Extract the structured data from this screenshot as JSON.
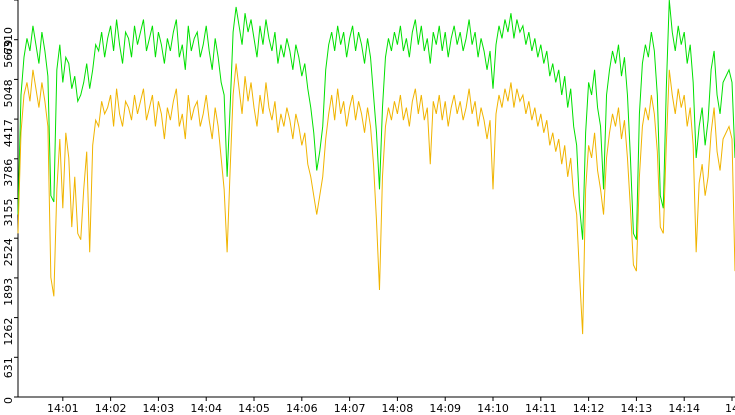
{
  "chart_data": {
    "type": "line",
    "categories": [
      null,
      null,
      null,
      null,
      null,
      null,
      null,
      null,
      null,
      null,
      null,
      null,
      null,
      null,
      null,
      "14:01",
      null,
      null,
      null,
      null,
      null,
      null,
      null,
      null,
      null,
      null,
      null,
      null,
      null,
      null,
      null,
      "14:02",
      null,
      null,
      null,
      null,
      null,
      null,
      null,
      null,
      null,
      null,
      null,
      null,
      null,
      null,
      null,
      "14:03",
      null,
      null,
      null,
      null,
      null,
      null,
      null,
      null,
      null,
      null,
      null,
      null,
      null,
      null,
      null,
      "14:04",
      null,
      null,
      null,
      null,
      null,
      null,
      null,
      null,
      null,
      null,
      null,
      null,
      null,
      null,
      null,
      "14:05",
      null,
      null,
      null,
      null,
      null,
      null,
      null,
      null,
      null,
      null,
      null,
      null,
      null,
      null,
      null,
      "14:06",
      null,
      null,
      null,
      null,
      null,
      null,
      null,
      null,
      null,
      null,
      null,
      null,
      null,
      null,
      null,
      "14:07",
      null,
      null,
      null,
      null,
      null,
      null,
      null,
      null,
      null,
      null,
      null,
      null,
      null,
      null,
      null,
      "14:08",
      null,
      null,
      null,
      null,
      null,
      null,
      null,
      null,
      null,
      null,
      null,
      null,
      null,
      null,
      null,
      "14:09",
      null,
      null,
      null,
      null,
      null,
      null,
      null,
      null,
      null,
      null,
      null,
      null,
      null,
      null,
      null,
      "14:10",
      null,
      null,
      null,
      null,
      null,
      null,
      null,
      null,
      null,
      null,
      null,
      null,
      null,
      null,
      null,
      "14:11",
      null,
      null,
      null,
      null,
      null,
      null,
      null,
      null,
      null,
      null,
      null,
      null,
      null,
      null,
      null,
      "14:12",
      null,
      null,
      null,
      null,
      null,
      null,
      null,
      null,
      null,
      null,
      null,
      null,
      null,
      null,
      null,
      "14:13",
      null,
      null,
      null,
      null,
      null,
      null,
      null,
      null,
      null,
      null,
      null,
      null,
      null,
      null,
      null,
      "14:14",
      null,
      null,
      null,
      null,
      null,
      null,
      null,
      null,
      null,
      null,
      null,
      null,
      null,
      null,
      null,
      "14",
      null
    ],
    "series": [
      {
        "color": "#00e000",
        "values": [
          2900,
          4800,
          5400,
          5700,
          5500,
          5900,
          5600,
          5300,
          5800,
          5500,
          5100,
          3200,
          3100,
          5200,
          5600,
          5000,
          5400,
          5300,
          4900,
          5100,
          4700,
          4800,
          5000,
          5300,
          4900,
          5200,
          5600,
          5500,
          5800,
          5400,
          5700,
          5900,
          5500,
          6000,
          5600,
          5300,
          5800,
          5700,
          5400,
          5900,
          5600,
          5800,
          6000,
          5500,
          5700,
          5900,
          5400,
          5800,
          5600,
          5300,
          5700,
          5500,
          5800,
          6000,
          5400,
          5600,
          5200,
          5900,
          5500,
          5700,
          5800,
          5400,
          5600,
          5900,
          5500,
          5200,
          5700,
          5400,
          5000,
          4800,
          3500,
          4600,
          5800,
          6200,
          5900,
          5600,
          6100,
          5800,
          6000,
          5700,
          5400,
          5900,
          5600,
          6000,
          5700,
          5500,
          5800,
          5300,
          5600,
          5400,
          5700,
          5500,
          5200,
          5600,
          5400,
          5100,
          5300,
          4900,
          4600,
          4200,
          3600,
          3900,
          4300,
          5200,
          5600,
          5800,
          5500,
          5900,
          5600,
          5800,
          5400,
          5700,
          5900,
          5500,
          5800,
          5600,
          5300,
          5700,
          5400,
          4800,
          4200,
          3300,
          4600,
          5400,
          5700,
          5500,
          5800,
          5600,
          5900,
          5500,
          5700,
          5400,
          5800,
          6000,
          5600,
          5900,
          5500,
          5700,
          5300,
          5800,
          5600,
          5900,
          5500,
          5800,
          5400,
          5700,
          5900,
          5600,
          5800,
          5500,
          5700,
          6000,
          5600,
          5800,
          5400,
          5700,
          5500,
          5200,
          5500,
          4900,
          5600,
          5900,
          5700,
          6000,
          5800,
          6100,
          5700,
          6000,
          5800,
          5900,
          5600,
          5800,
          5500,
          5700,
          5400,
          5600,
          5300,
          5500,
          5100,
          5300,
          5000,
          5200,
          4800,
          5100,
          4600,
          4900,
          4300,
          4000,
          3000,
          2500,
          4200,
          5000,
          4800,
          5200,
          4600,
          4300,
          3300,
          4800,
          5200,
          5500,
          5300,
          5600,
          5100,
          5400,
          4800,
          3800,
          2600,
          2500,
          4500,
          5300,
          5600,
          5400,
          5800,
          5500,
          4800,
          3200,
          3000,
          4900,
          6310,
          5800,
          5500,
          5900,
          5600,
          5800,
          5300,
          5600,
          5000,
          3800,
          4300,
          4600,
          4000,
          4400,
          5200,
          5500,
          4800,
          4500,
          5000,
          5100,
          5200,
          5000,
          3800
        ]
      },
      {
        "color": "#f0b400",
        "values": [
          2600,
          4200,
          4800,
          5000,
          4700,
          5200,
          4900,
          4600,
          5000,
          4700,
          4300,
          1900,
          1600,
          3300,
          4100,
          3000,
          4200,
          3800,
          2700,
          3500,
          2600,
          2500,
          3300,
          3900,
          2300,
          4000,
          4400,
          4300,
          4700,
          4500,
          4600,
          4800,
          4300,
          4900,
          4500,
          4300,
          4700,
          4600,
          4400,
          4800,
          4500,
          4700,
          4900,
          4400,
          4600,
          4800,
          4300,
          4700,
          4500,
          4100,
          4600,
          4400,
          4700,
          4900,
          4300,
          4500,
          4100,
          4800,
          4400,
          4600,
          4700,
          4300,
          4500,
          4800,
          4400,
          4100,
          4600,
          4300,
          3800,
          3300,
          2300,
          3600,
          4800,
          5300,
          4900,
          4500,
          5100,
          4700,
          5000,
          4600,
          4300,
          4800,
          4500,
          5000,
          4600,
          4400,
          4700,
          4200,
          4500,
          4300,
          4600,
          4400,
          4100,
          4500,
          4300,
          4000,
          4200,
          3700,
          3500,
          3200,
          2900,
          3200,
          3500,
          4100,
          4500,
          4800,
          4400,
          4900,
          4500,
          4700,
          4300,
          4600,
          4800,
          4400,
          4700,
          4500,
          4200,
          4600,
          4300,
          3700,
          2800,
          1700,
          3500,
          4300,
          4600,
          4400,
          4700,
          4500,
          4800,
          4400,
          4600,
          4300,
          4700,
          4900,
          4500,
          4800,
          4400,
          4600,
          3700,
          4700,
          4500,
          4800,
          4400,
          4700,
          4300,
          4600,
          4800,
          4500,
          4700,
          4400,
          4600,
          4900,
          4500,
          4700,
          4300,
          4600,
          4400,
          4100,
          4400,
          3300,
          4500,
          4800,
          4600,
          4900,
          4700,
          5000,
          4600,
          4900,
          4700,
          4800,
          4500,
          4700,
          4400,
          4600,
          4300,
          4500,
          4200,
          4400,
          4000,
          4200,
          3900,
          4100,
          3700,
          4000,
          3500,
          3800,
          3200,
          2900,
          1900,
          1000,
          3300,
          4000,
          3800,
          4200,
          3600,
          3300,
          2900,
          3800,
          4200,
          4500,
          4300,
          4600,
          4100,
          4400,
          3800,
          3000,
          2100,
          2000,
          3500,
          4300,
          4600,
          4400,
          4800,
          4500,
          3900,
          2700,
          2600,
          4000,
          5200,
          4800,
          4500,
          4900,
          4600,
          4800,
          4300,
          4600,
          4000,
          2300,
          3400,
          3700,
          3200,
          3500,
          4200,
          4600,
          3900,
          3600,
          4100,
          4200,
          4300,
          4100,
          2000
        ]
      }
    ],
    "ylim": [
      0,
      6310
    ],
    "yticks": [
      0,
      631,
      1262,
      1893,
      2524,
      3155,
      3786,
      4417,
      5048,
      5679,
      6310
    ]
  }
}
